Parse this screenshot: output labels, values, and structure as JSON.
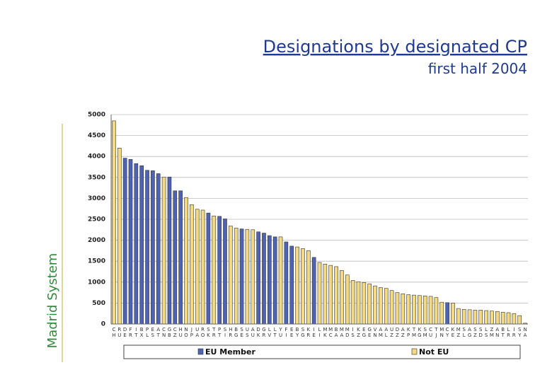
{
  "chart_data": {
    "type": "bar",
    "title": "Designations by designated CP",
    "subtitle": "first half 2004",
    "ylabel": "Madrid System",
    "categories": [
      "CH",
      "RU",
      "DE",
      "FR",
      "IT",
      "BX",
      "PL",
      "ES",
      "AT",
      "CN",
      "GB",
      "CZ",
      "HU",
      "NO",
      "JP",
      "UA",
      "RO",
      "SK",
      "TR",
      "PT",
      "SI",
      "HR",
      "BG",
      "SE",
      "US",
      "AU",
      "DK",
      "GR",
      "LV",
      "LT",
      "YU",
      "FI",
      "EE",
      "BY",
      "SG",
      "KR",
      "IE",
      "LI",
      "MK",
      "MC",
      "BA",
      "MA",
      "MD",
      "IS",
      "KZ",
      "EG",
      "GE",
      "VN",
      "AM",
      "AL",
      "UZ",
      "DZ",
      "AZ",
      "KP",
      "TM",
      "KG",
      "SM",
      "CU",
      "TJ",
      "MN",
      "CY",
      "KE",
      "MZ",
      "SL",
      "AG",
      "SZ",
      "SD",
      "LS",
      "ZM",
      "AN",
      "BT",
      "LR",
      "IR",
      "SY",
      "NA"
    ],
    "series": [
      {
        "name": "EU Member",
        "color": "#4f63b5",
        "values": [
          null,
          null,
          3960,
          3930,
          3830,
          3780,
          3670,
          3660,
          3590,
          null,
          3510,
          3180,
          3180,
          null,
          null,
          null,
          null,
          2650,
          null,
          2570,
          2510,
          null,
          null,
          2270,
          null,
          null,
          2200,
          2170,
          2110,
          2080,
          null,
          1960,
          1860,
          null,
          null,
          null,
          1590,
          null,
          null,
          null,
          null,
          null,
          null,
          null,
          null,
          null,
          null,
          null,
          null,
          null,
          null,
          null,
          null,
          null,
          null,
          null,
          null,
          null,
          null,
          null,
          510,
          null,
          null,
          null,
          null,
          null,
          null,
          null,
          null,
          null,
          null,
          null,
          null,
          null,
          null
        ]
      },
      {
        "name": "Not EU",
        "color": "#f3d983",
        "values": [
          4850,
          4200,
          null,
          null,
          null,
          null,
          null,
          null,
          null,
          3510,
          null,
          null,
          null,
          3020,
          2850,
          2740,
          2720,
          null,
          2580,
          null,
          null,
          2340,
          2290,
          null,
          2260,
          2250,
          null,
          null,
          null,
          null,
          2080,
          null,
          null,
          1840,
          1800,
          1750,
          null,
          1470,
          1430,
          1400,
          1370,
          1280,
          1170,
          1040,
          1010,
          990,
          960,
          910,
          870,
          850,
          800,
          750,
          720,
          700,
          690,
          680,
          670,
          660,
          630,
          520,
          null,
          500,
          370,
          350,
          340,
          330,
          330,
          320,
          310,
          300,
          280,
          270,
          250,
          200,
          20
        ]
      }
    ],
    "ylim": [
      0,
      5000
    ],
    "yticks": [
      0,
      500,
      1000,
      1500,
      2000,
      2500,
      3000,
      3500,
      4000,
      4500,
      5000
    ],
    "grid": true
  }
}
